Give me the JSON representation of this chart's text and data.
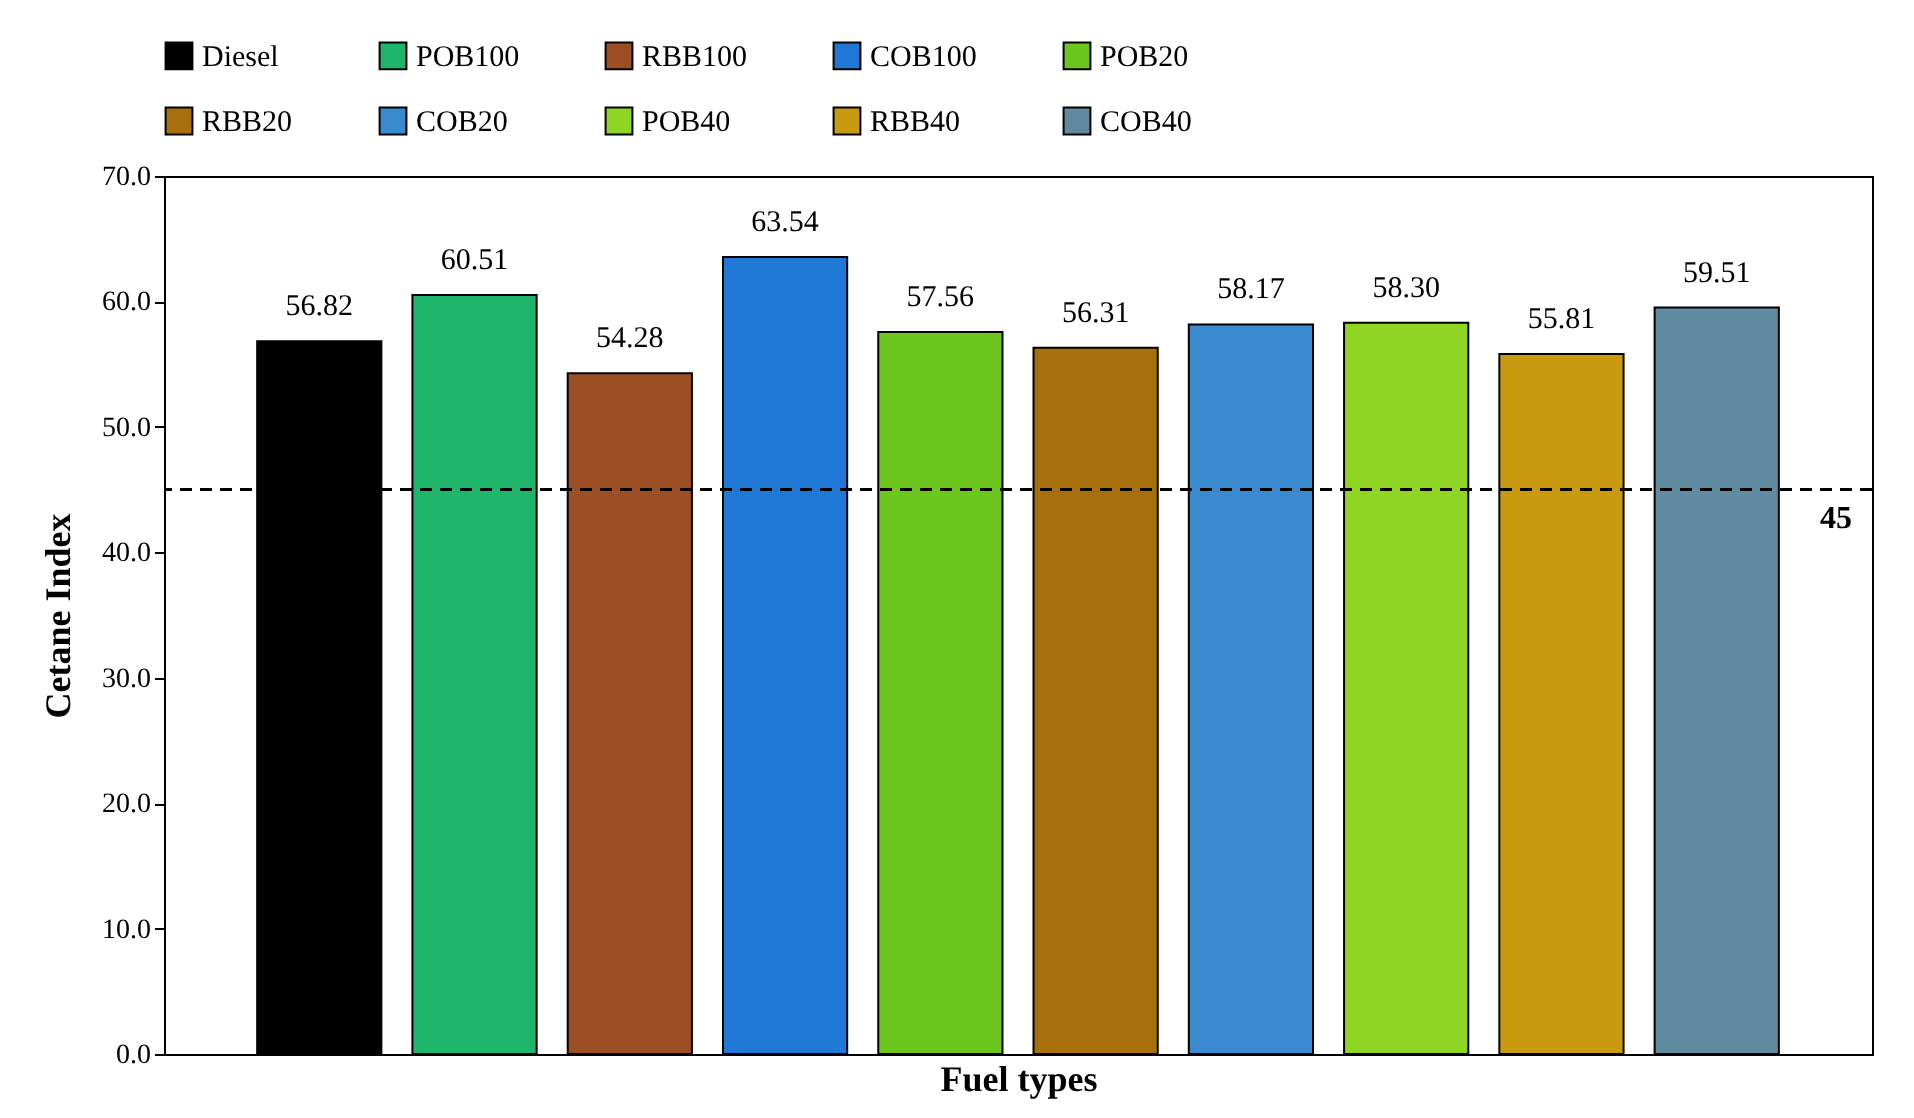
{
  "chart_data": {
    "type": "bar",
    "xlabel": "Fuel types",
    "ylabel": "Cetane Index",
    "categories": [
      null,
      null,
      null,
      null,
      null,
      null,
      null,
      null,
      null,
      null
    ],
    "series": [
      {
        "name": "Diesel",
        "color": "#000000",
        "values": [
          56.82,
          null,
          null,
          null,
          null,
          null,
          null,
          null,
          null,
          null
        ],
        "value_labels": [
          "56.82",
          null,
          null,
          null,
          null,
          null,
          null,
          null,
          null,
          null
        ]
      },
      {
        "name": "POB100",
        "color": "#1fb56b",
        "values": [
          null,
          60.51,
          null,
          null,
          null,
          null,
          null,
          null,
          null,
          null
        ],
        "value_labels": [
          null,
          "60.51",
          null,
          null,
          null,
          null,
          null,
          null,
          null,
          null
        ]
      },
      {
        "name": "RBB100",
        "color": "#9c4f25",
        "values": [
          null,
          null,
          54.28,
          null,
          null,
          null,
          null,
          null,
          null,
          null
        ],
        "value_labels": [
          null,
          null,
          "54.28",
          null,
          null,
          null,
          null,
          null,
          null,
          null
        ]
      },
      {
        "name": "COB100",
        "color": "#1f78d6",
        "values": [
          null,
          null,
          null,
          63.54,
          null,
          null,
          null,
          null,
          null,
          null
        ],
        "value_labels": [
          null,
          null,
          null,
          "63.54",
          null,
          null,
          null,
          null,
          null,
          null
        ]
      },
      {
        "name": "POB20",
        "color": "#6cc61e",
        "values": [
          null,
          null,
          null,
          null,
          57.56,
          null,
          null,
          null,
          null,
          null
        ],
        "value_labels": [
          null,
          null,
          null,
          null,
          "57.56",
          null,
          null,
          null,
          null,
          null
        ]
      },
      {
        "name": "RBB20",
        "color": "#a8700c",
        "values": [
          null,
          null,
          null,
          null,
          null,
          56.31,
          null,
          null,
          null,
          null
        ],
        "value_labels": [
          null,
          null,
          null,
          null,
          null,
          "56.31",
          null,
          null,
          null,
          null
        ]
      },
      {
        "name": "COB20",
        "color": "#3a8ad0",
        "values": [
          null,
          null,
          null,
          null,
          null,
          null,
          58.17,
          null,
          null,
          null
        ],
        "value_labels": [
          null,
          null,
          null,
          null,
          null,
          null,
          "58.17",
          null,
          null,
          null
        ]
      },
      {
        "name": "POB40",
        "color": "#8fd624",
        "values": [
          null,
          null,
          null,
          null,
          null,
          null,
          null,
          58.3,
          null,
          null
        ],
        "value_labels": [
          null,
          null,
          null,
          null,
          null,
          null,
          null,
          "58.30",
          null,
          null
        ]
      },
      {
        "name": "RBB40",
        "color": "#c99a10",
        "values": [
          null,
          null,
          null,
          null,
          null,
          null,
          null,
          null,
          55.81,
          null
        ],
        "value_labels": [
          null,
          null,
          null,
          null,
          null,
          null,
          null,
          null,
          "55.81",
          null
        ]
      },
      {
        "name": "COB40",
        "color": "#5f8aa0",
        "values": [
          null,
          null,
          null,
          null,
          null,
          null,
          null,
          null,
          null,
          59.51
        ],
        "value_labels": [
          null,
          null,
          null,
          null,
          null,
          null,
          null,
          null,
          null,
          "59.51"
        ]
      }
    ],
    "ylim": [
      0,
      70
    ],
    "yticks": [
      {
        "value": 0,
        "label": "0.0"
      },
      {
        "value": 10,
        "label": "10.0"
      },
      {
        "value": 20,
        "label": "20.0"
      },
      {
        "value": 30,
        "label": "30.0"
      },
      {
        "value": 40,
        "label": "40.0"
      },
      {
        "value": 50,
        "label": "50.0"
      },
      {
        "value": 60,
        "label": "60.0"
      },
      {
        "value": 70,
        "label": "70.0"
      }
    ],
    "ref_lines": [
      {
        "axis": "y",
        "value": 45,
        "label": "45",
        "line_style": "dashed",
        "color": "#000000"
      }
    ],
    "legend": "top",
    "grid": false
  }
}
